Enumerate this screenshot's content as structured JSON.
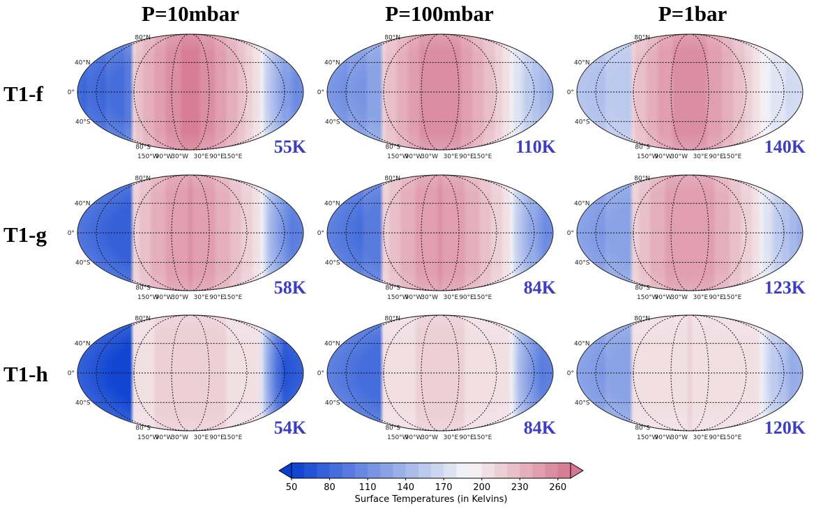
{
  "chart_data": {
    "type": "heatmap",
    "projection": "Robinson (global map)",
    "columns": [
      "P=10mbar",
      "P=100mbar",
      "P=1bar"
    ],
    "rows": [
      "T1-f",
      "T1-g",
      "T1-h"
    ],
    "map_labels": {
      "lat": [
        "80°N",
        "40°N",
        "0°",
        "40°S",
        "80°S"
      ],
      "lon": [
        "150°W",
        "90°W",
        "30°W",
        "30°E",
        "90°E",
        "150°E"
      ]
    },
    "panels": [
      [
        {
          "temp_label": "55K",
          "day_max": 262,
          "night": 95,
          "night_min": 65,
          "terminator_width": 0.32
        },
        {
          "temp_label": "110K",
          "day_max": 258,
          "night": 128,
          "night_min": 100,
          "terminator_width": 0.35
        },
        {
          "temp_label": "140K",
          "day_max": 255,
          "night": 160,
          "night_min": 140,
          "terminator_width": 0.38
        }
      ],
      [
        {
          "temp_label": "58K",
          "day_max": 250,
          "night": 80,
          "night_min": 70,
          "terminator_width": 0.3
        },
        {
          "temp_label": "84K",
          "day_max": 250,
          "night": 95,
          "night_min": 82,
          "terminator_width": 0.33
        },
        {
          "temp_label": "123K",
          "day_max": 248,
          "night": 125,
          "night_min": 115,
          "terminator_width": 0.35
        }
      ],
      [
        {
          "temp_label": "54K",
          "day_max": 215,
          "night": 52,
          "night_min": 52,
          "terminator_width": 0.22
        },
        {
          "temp_label": "84K",
          "day_max": 212,
          "night": 85,
          "night_min": 80,
          "terminator_width": 0.28
        },
        {
          "temp_label": "120K",
          "day_max": 210,
          "night": 122,
          "night_min": 118,
          "terminator_width": 0.32
        }
      ]
    ],
    "colorbar": {
      "label": "Surface Temperatures (in Kelvins)",
      "ticks": [
        "50",
        "80",
        "110",
        "140",
        "170",
        "200",
        "230",
        "260"
      ],
      "range": [
        50,
        270
      ],
      "step": 10,
      "extend": "both"
    }
  },
  "colors": {
    "cold": "#0a3fd1",
    "neutral": "#f7f7f7",
    "hot": "#d57690",
    "temp_label": "#3d3dbf"
  }
}
